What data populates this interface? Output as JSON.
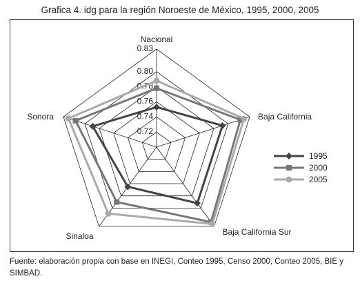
{
  "title": "Grafica 4. idg para la región Noroeste de México, 1995, 2000, 2005",
  "source": "Fuente: elaboración propia con base en INEGI, Conteo 1995, Censo 2000, Conteo 2005, BIE y SIMBAD.",
  "chart_data": {
    "type": "radar",
    "categories": [
      "Nacional",
      "Baja California",
      "Baja California Sur",
      "Sinaloa",
      "Sonora"
    ],
    "axis_ticks": [
      "0.72",
      "0.74",
      "0.76",
      "0.78",
      "0.80",
      "0.83"
    ],
    "axis_range": [
      0.7,
      0.83
    ],
    "legend_placement": "right",
    "series": [
      {
        "name": "1995",
        "color": "#444444",
        "marker": "diamond",
        "values": [
          0.753,
          0.792,
          0.792,
          0.765,
          0.789
        ]
      },
      {
        "name": "2000",
        "color": "#777777",
        "marker": "square",
        "values": [
          0.778,
          0.817,
          0.823,
          0.79,
          0.813
        ]
      },
      {
        "name": "2005",
        "color": "#aaaaaa",
        "marker": "circle",
        "values": [
          0.788,
          0.822,
          0.826,
          0.809,
          0.823
        ]
      }
    ]
  }
}
